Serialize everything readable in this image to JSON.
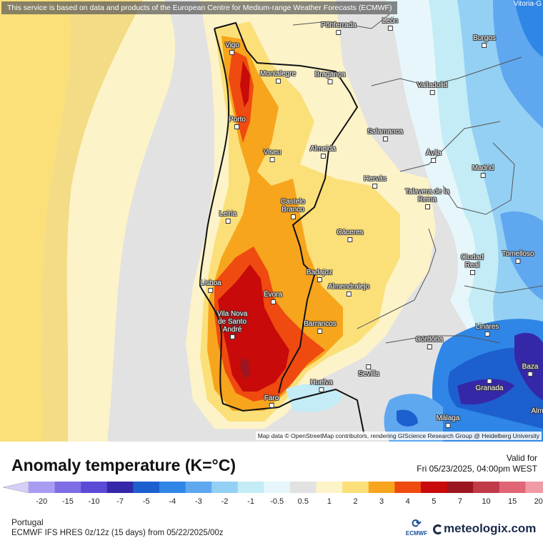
{
  "map": {
    "banner": "This service is based on data and products of the European Centre for Medium-range Weather Forecasts (ECMWF)",
    "corner_city": "Vitoria-G",
    "attribution": "Map data © OpenStreetMap contributors, rendering GIScience Research Group @ Heidelberg University",
    "cities": [
      {
        "key": "ponferrada",
        "name": "Ponferrada"
      },
      {
        "key": "leon",
        "name": "León"
      },
      {
        "key": "vigo",
        "name": "Vigo"
      },
      {
        "key": "burgos",
        "name": "Burgos"
      },
      {
        "key": "montalegre",
        "name": "Montalegre"
      },
      {
        "key": "braganca",
        "name": "Bragança"
      },
      {
        "key": "valladolid",
        "name": "Valladolid"
      },
      {
        "key": "porto",
        "name": "Porto"
      },
      {
        "key": "salamanca",
        "name": "Salamanca"
      },
      {
        "key": "viseu",
        "name": "Viseu"
      },
      {
        "key": "almeida",
        "name": "Almeida"
      },
      {
        "key": "avila",
        "name": "Ávila"
      },
      {
        "key": "madrid",
        "name": "Madrid"
      },
      {
        "key": "hervas",
        "name": "Hervás"
      },
      {
        "key": "talavera",
        "name": "Talavera de la Reina"
      },
      {
        "key": "castelo",
        "name": "Castelo Branco"
      },
      {
        "key": "leiria",
        "name": "Leiria"
      },
      {
        "key": "caceres",
        "name": "Cáceres"
      },
      {
        "key": "ciudadreal",
        "name": "Ciudad Real"
      },
      {
        "key": "tomelloso",
        "name": "Tomelloso"
      },
      {
        "key": "badajoz",
        "name": "Badajoz"
      },
      {
        "key": "lisboa",
        "name": "Lisboa"
      },
      {
        "key": "almendralejo",
        "name": "Almendralejo"
      },
      {
        "key": "evora",
        "name": "Évora"
      },
      {
        "key": "vilanova",
        "name": "Vila Nova de Santo André"
      },
      {
        "key": "barrancos",
        "name": "Barrancos"
      },
      {
        "key": "linares",
        "name": "Linares"
      },
      {
        "key": "cordoba",
        "name": "Córdoba"
      },
      {
        "key": "baza",
        "name": "Baza"
      },
      {
        "key": "sevilla",
        "name": "Sevilla"
      },
      {
        "key": "huelva",
        "name": "Huelva"
      },
      {
        "key": "granada",
        "name": "Granada"
      },
      {
        "key": "faro",
        "name": "Faro"
      },
      {
        "key": "malaga",
        "name": "Málaga"
      },
      {
        "key": "almeria",
        "name": "Alm"
      }
    ]
  },
  "legend": {
    "title": "Anomaly temperature (K=°C)",
    "valid_label": "Valid for",
    "valid_date": "Fri 05/23/2025, 04:00pm WEST",
    "region": "Portugal",
    "model": "ECMWF IFS HRES 0z/12z (15 days) from  05/22/2025/00z",
    "ecmwf_label": "ECMWF",
    "brand": "meteologix.com",
    "ticks": [
      "-20",
      "-15",
      "-10",
      "-7",
      "-5",
      "-4",
      "-3",
      "-2",
      "-1",
      "-0.5",
      "0.5",
      "1",
      "2",
      "3",
      "4",
      "5",
      "7",
      "10",
      "15",
      "20"
    ],
    "colors": [
      "#a89cf2",
      "#7e6ee6",
      "#5b4ad6",
      "#3528a8",
      "#1d5fcf",
      "#2f86e6",
      "#5fa8f0",
      "#94d0f3",
      "#c3ecf6",
      "#e6f6fa",
      "#e2e2e2",
      "#fdf3c8",
      "#fbe07a",
      "#f7a51d",
      "#ef4a10",
      "#c80a0a",
      "#9b1620",
      "#c03a48",
      "#e06676",
      "#f09aa6"
    ]
  }
}
